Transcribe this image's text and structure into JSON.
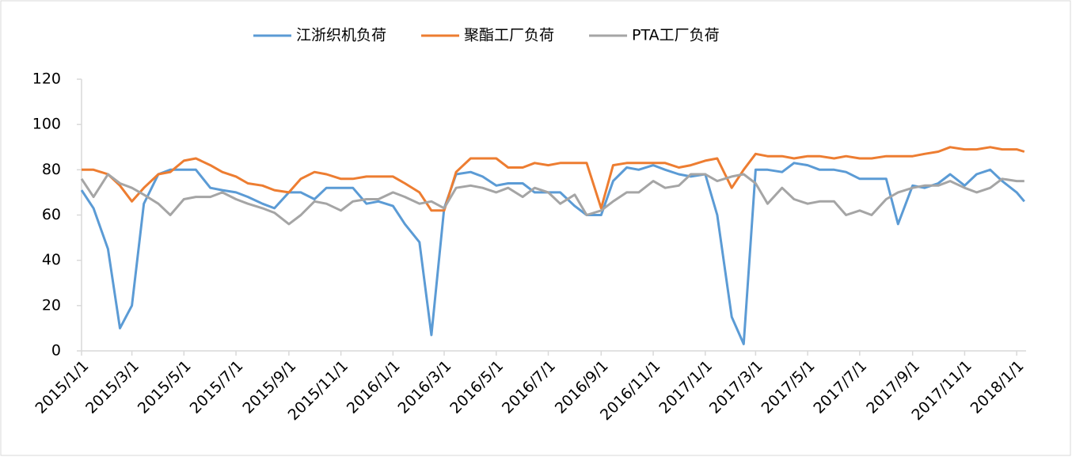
{
  "chart_data": {
    "type": "line",
    "x": [
      "2015/1/1",
      "2015/1/15",
      "2015/2/1",
      "2015/2/15",
      "2015/3/1",
      "2015/3/15",
      "2015/4/1",
      "2015/4/15",
      "2015/5/1",
      "2015/5/15",
      "2015/6/1",
      "2015/6/15",
      "2015/7/1",
      "2015/7/15",
      "2015/8/1",
      "2015/8/15",
      "2015/9/1",
      "2015/9/15",
      "2015/10/1",
      "2015/10/15",
      "2015/11/1",
      "2015/11/15",
      "2015/12/1",
      "2015/12/15",
      "2016/1/1",
      "2016/1/15",
      "2016/2/1",
      "2016/2/15",
      "2016/3/1",
      "2016/3/15",
      "2016/4/1",
      "2016/4/15",
      "2016/5/1",
      "2016/5/15",
      "2016/6/1",
      "2016/6/15",
      "2016/7/1",
      "2016/7/15",
      "2016/8/1",
      "2016/8/15",
      "2016/9/1",
      "2016/9/15",
      "2016/10/1",
      "2016/10/15",
      "2016/11/1",
      "2016/11/15",
      "2016/12/1",
      "2016/12/15",
      "2017/1/1",
      "2017/1/15",
      "2017/2/1",
      "2017/2/15",
      "2017/3/1",
      "2017/3/15",
      "2017/4/1",
      "2017/4/15",
      "2017/5/1",
      "2017/5/15",
      "2017/6/1",
      "2017/6/15",
      "2017/7/1",
      "2017/7/15",
      "2017/8/1",
      "2017/8/15",
      "2017/9/1",
      "2017/9/15",
      "2017/10/1",
      "2017/10/15",
      "2017/11/1",
      "2017/11/15",
      "2017/12/1",
      "2017/12/15",
      "2018/1/1",
      "2018/1/10"
    ],
    "series": [
      {
        "name": "江浙织机负荷",
        "color": "#5b9bd5",
        "values": [
          71,
          63,
          45,
          10,
          20,
          65,
          78,
          80,
          80,
          80,
          72,
          71,
          70,
          68,
          65,
          63,
          70,
          70,
          67,
          72,
          72,
          72,
          65,
          66,
          64,
          56,
          48,
          7,
          63,
          78,
          79,
          77,
          73,
          74,
          74,
          70,
          70,
          70,
          64,
          60,
          60,
          75,
          81,
          80,
          82,
          80,
          78,
          77,
          78,
          60,
          15,
          3,
          80,
          80,
          79,
          83,
          82,
          80,
          80,
          79,
          76,
          76,
          76,
          56,
          73,
          72,
          74,
          78,
          73,
          78,
          80,
          75,
          70,
          66
        ]
      },
      {
        "name": "聚酯工厂负荷",
        "color": "#ed7d31",
        "values": [
          80,
          80,
          78,
          73,
          66,
          72,
          78,
          79,
          84,
          85,
          82,
          79,
          77,
          74,
          73,
          71,
          70,
          76,
          79,
          78,
          76,
          76,
          77,
          77,
          77,
          74,
          70,
          62,
          62,
          79,
          85,
          85,
          85,
          81,
          81,
          83,
          82,
          83,
          83,
          83,
          63,
          82,
          83,
          83,
          83,
          83,
          81,
          82,
          84,
          85,
          72,
          80,
          87,
          86,
          86,
          85,
          86,
          86,
          85,
          86,
          85,
          85,
          86,
          86,
          86,
          87,
          88,
          90,
          89,
          89,
          90,
          89,
          89,
          88
        ]
      },
      {
        "name": "PTA工厂负荷",
        "color": "#a5a5a5",
        "values": [
          76,
          68,
          78,
          74,
          72,
          69,
          65,
          60,
          67,
          68,
          68,
          70,
          67,
          65,
          63,
          61,
          56,
          60,
          66,
          65,
          62,
          66,
          67,
          67,
          70,
          68,
          65,
          66,
          63,
          72,
          73,
          72,
          70,
          72,
          68,
          72,
          70,
          65,
          69,
          60,
          62,
          66,
          70,
          70,
          75,
          72,
          73,
          78,
          78,
          75,
          77,
          78,
          74,
          65,
          72,
          67,
          65,
          66,
          66,
          60,
          62,
          60,
          67,
          70,
          72,
          73,
          73,
          75,
          72,
          70,
          72,
          76,
          75,
          75
        ]
      }
    ],
    "xlim": [
      "2015/1/1",
      "2018/1/12"
    ],
    "xticks": [
      "2015/1/1",
      "2015/3/1",
      "2015/5/1",
      "2015/7/1",
      "2015/9/1",
      "2015/11/1",
      "2016/1/1",
      "2016/3/1",
      "2016/5/1",
      "2016/7/1",
      "2016/9/1",
      "2016/11/1",
      "2017/1/1",
      "2017/3/1",
      "2017/5/1",
      "2017/7/1",
      "2017/9/1",
      "2017/11/1",
      "2018/1/1"
    ],
    "ylim": [
      0,
      120
    ],
    "yticks": [
      0,
      20,
      40,
      60,
      80,
      100,
      120
    ],
    "grid": false,
    "legend": "top"
  }
}
